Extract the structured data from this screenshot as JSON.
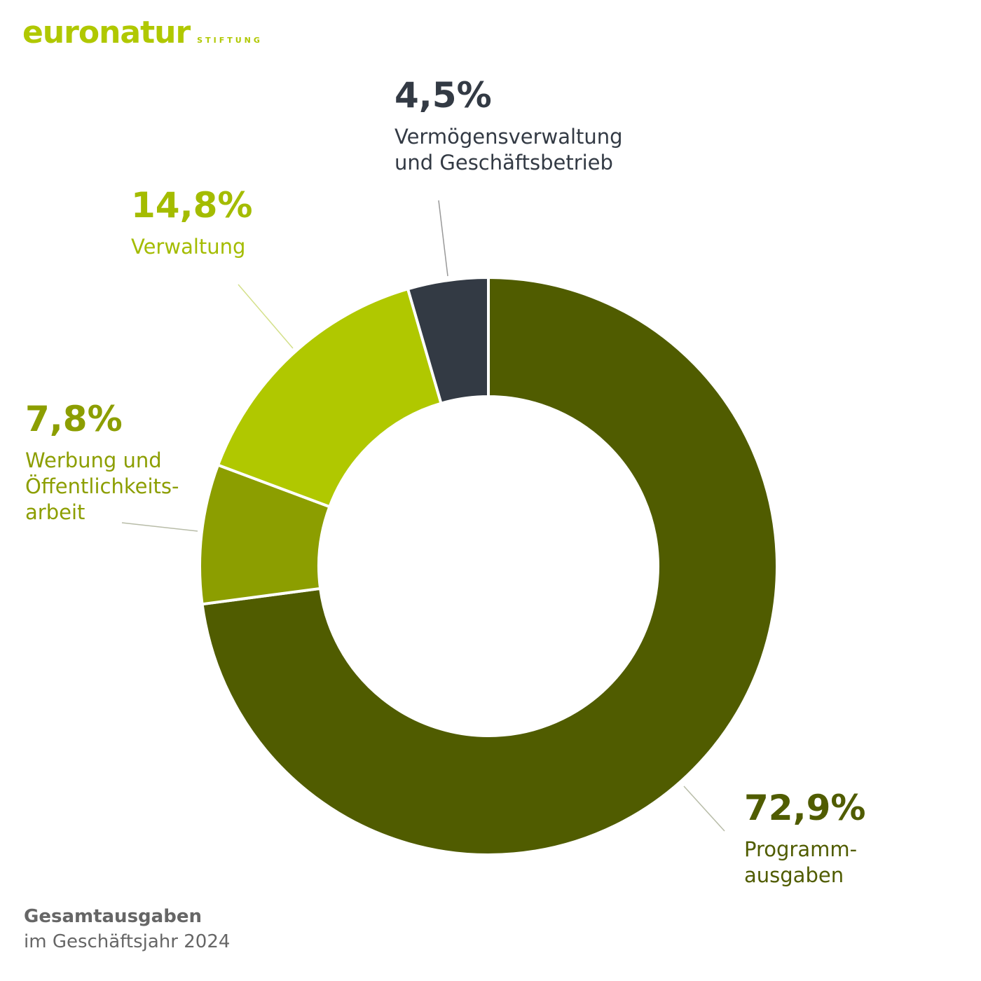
{
  "brand": {
    "word": "euronatur",
    "sub": "STIFTUNG",
    "color": "#b0c800"
  },
  "footer": {
    "title": "Gesamtausgaben",
    "subtitle": "im Geschäftsjahr 2024"
  },
  "chart_data": {
    "type": "pie",
    "variant": "donut",
    "title": "Gesamtausgaben",
    "subtitle": "im Geschäftsjahr 2024",
    "unit": "%",
    "slices": [
      {
        "value": 72.9,
        "percent_label": "72,9%",
        "label_lines": [
          "Programm-",
          "ausgaben"
        ],
        "color": "#505c00",
        "text_color": "#505c00"
      },
      {
        "value": 7.8,
        "percent_label": "7,8%",
        "label_lines": [
          "Werbung und",
          "Öffentlichkeits-",
          "arbeit"
        ],
        "color": "#8c9e00",
        "text_color": "#8c9e00"
      },
      {
        "value": 14.8,
        "percent_label": "14,8%",
        "label_lines": [
          "Verwaltung"
        ],
        "color": "#b0c800",
        "text_color": "#a4bc00"
      },
      {
        "value": 4.5,
        "percent_label": "4,5%",
        "label_lines": [
          "Vermögensverwaltung",
          "und Geschäftsbetrieb"
        ],
        "color": "#333a44",
        "text_color": "#333a44"
      }
    ],
    "legend": "none"
  }
}
